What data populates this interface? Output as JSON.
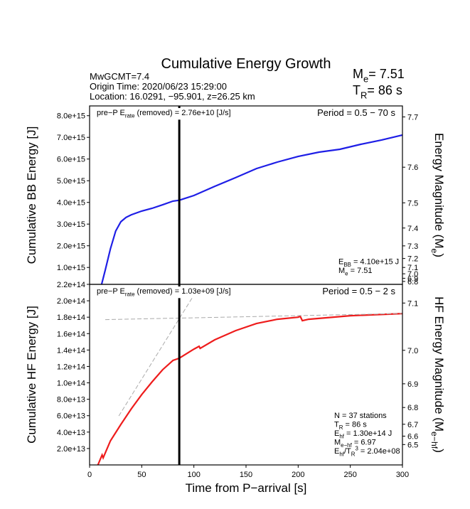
{
  "header": {
    "title": "Cumulative Energy Growth",
    "info": [
      "MwGCMT=7.4",
      "Origin Time: 2020/06/23 15:29:00",
      "Location: 16.0291, −95.901, z=26.25 km"
    ],
    "summary": [
      [
        {
          "text": "M"
        },
        {
          "text": "e",
          "sub": true
        },
        {
          "text": "= 7.51"
        }
      ],
      [
        {
          "text": "T"
        },
        {
          "text": "R",
          "sub": true
        },
        {
          "text": "= 86 s"
        }
      ]
    ]
  },
  "chart_data": [
    {
      "type": "line",
      "ylabel": "Cumulative BB Energy [J]",
      "y2label": [
        {
          "text": "Energy Magnitude (M"
        },
        {
          "text": "e",
          "sub": true
        },
        {
          "text": ")"
        }
      ],
      "xlim": [
        0,
        300
      ],
      "ylim": [
        220000000000000.0,
        8450000000000000.0
      ],
      "yticks": [
        {
          "value": 220000000000000.0,
          "label": "2.2e+14"
        },
        {
          "value": 1000000000000000.0,
          "label": "1.0e+15"
        },
        {
          "value": 2000000000000000.0,
          "label": "2.0e+15"
        },
        {
          "value": 3000000000000000.0,
          "label": "3.0e+15"
        },
        {
          "value": 4000000000000000.0,
          "label": "4.0e+15"
        },
        {
          "value": 5000000000000000.0,
          "label": "5.0e+15"
        },
        {
          "value": 6000000000000000.0,
          "label": "6.0e+15"
        },
        {
          "value": 7000000000000000.0,
          "label": "7.0e+15"
        },
        {
          "value": 8000000000000000.0,
          "label": "8.0e+15"
        }
      ],
      "y2ticks": [
        7.7,
        7.6,
        7.5,
        7.4,
        7.3,
        7.2,
        7.1,
        {
          "value": 7,
          "label": "7.0"
        },
        6.9,
        6.8
      ],
      "marker_x": 86,
      "series": [
        {
          "color": "#1e1ee6",
          "x": [
            11.5,
            15,
            20,
            25,
            30,
            35,
            40,
            50,
            60,
            70,
            80,
            86,
            100,
            120,
            140,
            160,
            180,
            200,
            220,
            240,
            260,
            280,
            300
          ],
          "values": [
            220000000000000.0,
            876000000000000.0,
            1860000000000000.0,
            2680000000000000.0,
            3110000000000000.0,
            3310000000000000.0,
            3430000000000000.0,
            3600000000000000.0,
            3730000000000000.0,
            3890000000000000.0,
            4060000000000000.0,
            4100000000000000.0,
            4320000000000000.0,
            4740000000000000.0,
            5140000000000000.0,
            5560000000000000.0,
            5860000000000000.0,
            6120000000000000.0,
            6320000000000000.0,
            6450000000000000.0,
            6680000000000000.0,
            6880000000000000.0,
            7110000000000000.0
          ]
        }
      ],
      "annotations": {
        "top_left": [
          {
            "text": "pre−P E"
          },
          {
            "text": "rate",
            "sub": true
          },
          {
            "text": " (removed) = 2.76e+10 [J/s]"
          }
        ],
        "top_right": "Period = 0.5 − 70 s",
        "bottom_right": [
          [
            {
              "text": "E"
            },
            {
              "text": "BB",
              "sub": true
            },
            {
              "text": " = 4.10e+15 J"
            }
          ],
          [
            {
              "text": "M"
            },
            {
              "text": "e",
              "sub": true
            },
            {
              "text": " = 7.51"
            }
          ]
        ]
      }
    },
    {
      "type": "line",
      "ylabel": "Cumulative HF Energy [J]",
      "y2label": [
        {
          "text": "HF Energy Magnitude (M"
        },
        {
          "text": "e−hf",
          "sub": true
        },
        {
          "text": ")"
        }
      ],
      "xlabel": "Time from P−arrival [s]",
      "xlim": [
        0,
        300
      ],
      "xticks": [
        0,
        50,
        100,
        150,
        200,
        250,
        300
      ],
      "ylim": [
        0,
        220000000000000.0
      ],
      "yticks": [
        {
          "value": 20000000000000.0,
          "label": "2.0e+13"
        },
        {
          "value": 40000000000000.0,
          "label": "4.0e+13"
        },
        {
          "value": 60000000000000.0,
          "label": "6.0e+13"
        },
        {
          "value": 80000000000000.0,
          "label": "8.0e+13"
        },
        {
          "value": 100000000000000.0,
          "label": "1.0e+14"
        },
        {
          "value": 120000000000000.0,
          "label": "1.2e+14"
        },
        {
          "value": 140000000000000.0,
          "label": "1.4e+14"
        },
        {
          "value": 160000000000000.0,
          "label": "1.6e+14"
        },
        {
          "value": 180000000000000.0,
          "label": "1.8e+14"
        },
        {
          "value": 200000000000000.0,
          "label": "2.0e+14"
        }
      ],
      "y2ticks": [
        7.1,
        {
          "value": 7,
          "label": "7.0"
        },
        6.9,
        6.8,
        6.7,
        6.6,
        6.5
      ],
      "marker_x": 86,
      "series": [
        {
          "color": "#ee1c1c",
          "x": [
            8,
            12,
            13,
            20,
            30,
            40,
            50,
            60,
            70,
            80,
            86,
            100,
            105,
            106,
            120,
            140,
            160,
            180,
            200,
            202,
            204,
            210,
            250,
            300
          ],
          "values": [
            0,
            12100000000000.0,
            8700000000000.0,
            29400000000000.0,
            49400000000000.0,
            68400000000000.0,
            85700000000000.0,
            101300000000000.0,
            116000000000000.0,
            127300000000000.0,
            130000000000000.0,
            141100000000000.0,
            144600000000000.0,
            142000000000000.0,
            152400000000000.0,
            163600000000000.0,
            172300000000000.0,
            177500000000000.0,
            180000000000000.0,
            181000000000000.0,
            175700000000000.0,
            177500000000000.0,
            181800000000000.0,
            184400000000000.0
          ]
        },
        {
          "color": "#aaaaaa",
          "dashed": true,
          "x": [
            28,
            102
          ],
          "values": [
            59700000000000.0,
            211000000000000.0
          ]
        },
        {
          "color": "#aaaaaa",
          "dashed": true,
          "x": [
            15,
            300
          ],
          "values": [
            177000000000000.0,
            184500000000000.0
          ]
        }
      ],
      "annotations": {
        "top_left": [
          {
            "text": "pre−P E"
          },
          {
            "text": "rate",
            "sub": true
          },
          {
            "text": " (removed) = 1.03e+09 [J/s]"
          }
        ],
        "top_right": "Period = 0.5 − 2 s",
        "bottom_right": [
          [
            {
              "text": "N = 37 stations"
            }
          ],
          [
            {
              "text": "T"
            },
            {
              "text": "R",
              "sub": true
            },
            {
              "text": " = 86  s"
            }
          ],
          [
            {
              "text": "E"
            },
            {
              "text": "hf",
              "sub": true
            },
            {
              "text": " = 1.30e+14 J"
            }
          ],
          [
            {
              "text": "M"
            },
            {
              "text": "e−hf",
              "sub": true
            },
            {
              "text": " = 6.97"
            }
          ],
          [
            {
              "text": "E"
            },
            {
              "text": "hf",
              "sub": true
            },
            {
              "text": "/T"
            },
            {
              "text": "R",
              "sub": true
            },
            {
              "text": "3",
              "sup": true
            },
            {
              "text": " = 2.04e+08"
            }
          ]
        ]
      }
    }
  ]
}
